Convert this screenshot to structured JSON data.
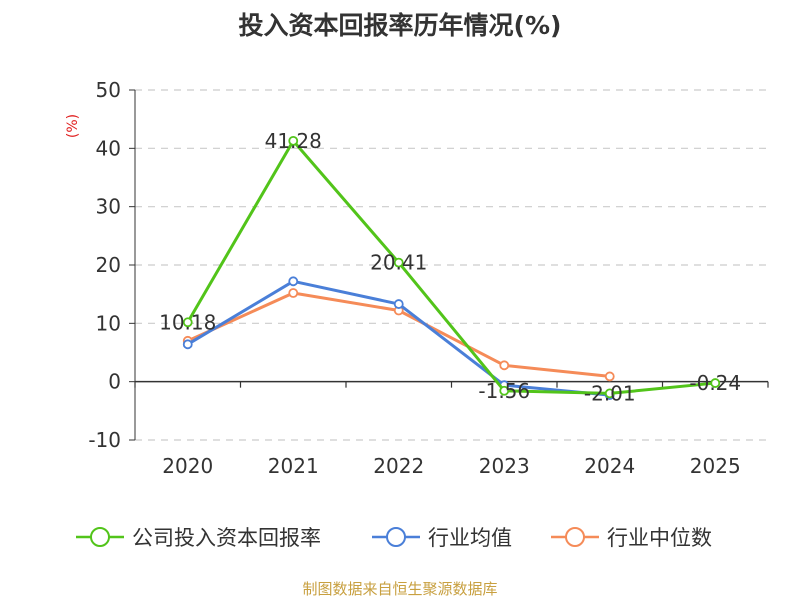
{
  "title": "投入资本回报率历年情况(%)",
  "source": "制图数据来自恒生聚源数据库",
  "colors": {
    "company": "#52c41a",
    "industry_avg": "#4a7fd8",
    "industry_median": "#f58b58",
    "ylabel": "#e02020",
    "axis": "#333333",
    "grid": "#cccccc",
    "text": "#333333"
  },
  "chart_data": {
    "type": "line",
    "title": "投入资本回报率历年情况(%)",
    "xlabel": "",
    "ylabel": "(%)",
    "categories": [
      "2020",
      "2021",
      "2022",
      "2023",
      "2024",
      "2025"
    ],
    "ylim": [
      -10,
      50
    ],
    "yticks": [
      50,
      40,
      30,
      20,
      10,
      0,
      -10
    ],
    "grid": true,
    "legend_position": "bottom",
    "series": [
      {
        "name": "公司投入资本回报率",
        "key": "company",
        "values": [
          10.18,
          41.28,
          20.41,
          -1.56,
          -2.01,
          -0.24
        ],
        "labels": [
          "10.18",
          "41.28",
          "20.41",
          "-1.56",
          "-2.01",
          "-0.24"
        ]
      },
      {
        "name": "行业均值",
        "key": "industry_avg",
        "values": [
          6.4,
          17.2,
          13.3,
          -0.6,
          -2.3,
          null
        ]
      },
      {
        "name": "行业中位数",
        "key": "industry_median",
        "values": [
          7.0,
          15.2,
          12.2,
          2.8,
          0.9,
          null
        ]
      }
    ]
  }
}
